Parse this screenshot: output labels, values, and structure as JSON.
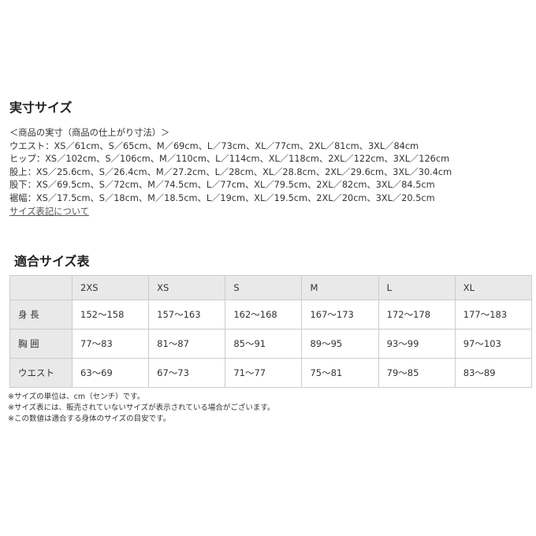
{
  "section1": {
    "title": "実寸サイズ",
    "lines": [
      "＜商品の実寸（商品の仕上がり寸法）＞",
      "ウエスト：XS／61cm、S／65cm、M／69cm、L／73cm、XL／77cm、2XL／81cm、3XL／84cm",
      "ヒップ：XS／102cm、S／106cm、M／110cm、L／114cm、XL／118cm、2XL／122cm、3XL／126cm",
      "股上：XS／25.6cm、S／26.4cm、M／27.2cm、L／28cm、XL／28.8cm、2XL／29.6cm、3XL／30.4cm",
      "股下：XS／69.5cm、S／72cm、M／74.5cm、L／77cm、XL／79.5cm、2XL／82cm、3XL／84.5cm",
      "裾幅：XS／17.5cm、S／18cm、M／18.5cm、L／19cm、XL／19.5cm、2XL／20cm、3XL／20.5cm"
    ],
    "link": "サイズ表記について"
  },
  "section2": {
    "title": "適合サイズ表",
    "headers": [
      "",
      "2XS",
      "XS",
      "S",
      "M",
      "L",
      "XL"
    ],
    "rows": [
      [
        "身 長",
        "152〜158",
        "157〜163",
        "162〜168",
        "167〜173",
        "172〜178",
        "177〜183"
      ],
      [
        "胸 囲",
        "77〜83",
        "81〜87",
        "85〜91",
        "89〜95",
        "93〜99",
        "97〜103"
      ],
      [
        "ウエスト",
        "63〜69",
        "67〜73",
        "71〜77",
        "75〜81",
        "79〜85",
        "83〜89"
      ]
    ]
  },
  "notes": [
    "※サイズの単位は、cm（センチ）です。",
    "※サイズ表には、販売されていないサイズが表示されている場合がございます。",
    "※この数値は適合する身体のサイズの目安です。"
  ]
}
